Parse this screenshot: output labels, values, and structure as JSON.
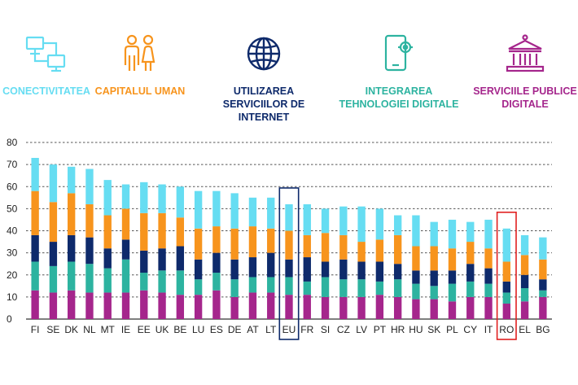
{
  "legend": [
    {
      "label": "CONECTIVITATEA",
      "color": "#66ddf2",
      "icon": "network-computers-icon"
    },
    {
      "label": "CAPITALUL UMAN",
      "color": "#f7941d",
      "icon": "people-icon"
    },
    {
      "label": "UTILIZAREA SERVICIILOR DE INTERNET",
      "color": "#0e2a6b",
      "icon": "globe-icon"
    },
    {
      "label": "INTEGRAREA TEHNOLOGIEI DIGITALE",
      "color": "#2db3a0",
      "icon": "smartphone-gear-icon"
    },
    {
      "label": "SERVICIILE PUBLICE DIGITALE",
      "color": "#a5268c",
      "icon": "government-building-icon"
    }
  ],
  "chart_data": {
    "type": "bar",
    "stacked": true,
    "categories": [
      "FI",
      "SE",
      "DK",
      "NL",
      "MT",
      "IE",
      "EE",
      "UK",
      "BE",
      "LU",
      "ES",
      "DE",
      "AT",
      "LT",
      "EU",
      "FR",
      "SI",
      "CZ",
      "LV",
      "PT",
      "HR",
      "HU",
      "SK",
      "PL",
      "CY",
      "IT",
      "RO",
      "EL",
      "BG"
    ],
    "series": [
      {
        "name": "Serviciile publice digitale",
        "color": "#a5268c",
        "values": [
          13,
          12,
          13,
          12,
          12,
          12,
          13,
          12,
          11,
          11,
          13,
          10,
          12,
          12,
          11,
          11,
          10,
          10,
          10,
          11,
          10,
          9,
          9,
          8,
          10,
          10,
          7,
          8,
          10
        ]
      },
      {
        "name": "Integrarea tehnologiei digitale",
        "color": "#2db3a0",
        "values": [
          13,
          12,
          13,
          13,
          11,
          15,
          8,
          10,
          11,
          7,
          8,
          8,
          7,
          7,
          8,
          6,
          9,
          8,
          8,
          6,
          8,
          7,
          6,
          8,
          7,
          6,
          5,
          6,
          3
        ]
      },
      {
        "name": "Utilizarea serviciilor de internet",
        "color": "#0e2a6b",
        "values": [
          12,
          11,
          12,
          12,
          9,
          9,
          10,
          10,
          11,
          9,
          9,
          9,
          9,
          11,
          8,
          11,
          7,
          9,
          8,
          9,
          7,
          6,
          7,
          6,
          8,
          7,
          5,
          6,
          5
        ]
      },
      {
        "name": "Capitalul uman",
        "color": "#f7941d",
        "values": [
          20,
          18,
          19,
          15,
          15,
          14,
          17,
          16,
          13,
          14,
          12,
          14,
          14,
          11,
          13,
          10,
          13,
          11,
          9,
          10,
          13,
          11,
          11,
          10,
          10,
          9,
          9,
          9,
          9
        ]
      },
      {
        "name": "Conectivitatea",
        "color": "#66ddf2",
        "values": [
          15,
          17,
          12,
          16,
          16,
          11,
          14,
          13,
          14,
          17,
          16,
          16,
          13,
          14,
          12,
          14,
          11,
          13,
          16,
          14,
          9,
          14,
          11,
          13,
          9,
          13,
          15,
          9,
          10
        ]
      }
    ],
    "ylim": [
      0,
      80
    ],
    "yticks": [
      0,
      10,
      20,
      30,
      40,
      50,
      60,
      70,
      80
    ],
    "highlighted": [
      {
        "category": "EU",
        "color": "#0e2a6b"
      },
      {
        "category": "RO",
        "color": "#e02020"
      }
    ],
    "grid": true,
    "title": "",
    "xlabel": "",
    "ylabel": ""
  }
}
